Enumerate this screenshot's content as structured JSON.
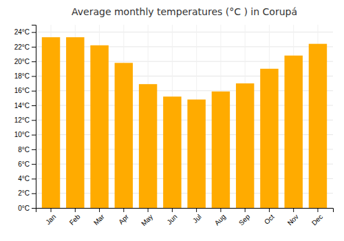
{
  "chart_data": {
    "type": "bar",
    "title": "Average monthly temperatures (°C ) in Corupá",
    "categories": [
      "Jan",
      "Feb",
      "Mar",
      "Apr",
      "May",
      "Jun",
      "Jul",
      "Aug",
      "Sep",
      "Oct",
      "Nov",
      "Dec"
    ],
    "values": [
      23.3,
      23.3,
      22.2,
      19.8,
      16.9,
      15.2,
      14.8,
      15.9,
      17.0,
      19.0,
      20.8,
      22.4
    ],
    "color": "#FFAB00",
    "ylim": [
      0,
      25
    ],
    "yticks": [
      {
        "value": 0,
        "label": "0°C"
      },
      {
        "value": 2,
        "label": "2°C"
      },
      {
        "value": 4,
        "label": "4°C"
      },
      {
        "value": 6,
        "label": "6°C"
      },
      {
        "value": 8,
        "label": "8°C"
      },
      {
        "value": 10,
        "label": "10°C"
      },
      {
        "value": 12,
        "label": "12°C"
      },
      {
        "value": 14,
        "label": "14°C"
      },
      {
        "value": 16,
        "label": "16°C"
      },
      {
        "value": 18,
        "label": "18°C"
      },
      {
        "value": 20,
        "label": "20°C"
      },
      {
        "value": 22,
        "label": "22°C"
      },
      {
        "value": 24,
        "label": "24°C"
      }
    ],
    "grid": true
  }
}
